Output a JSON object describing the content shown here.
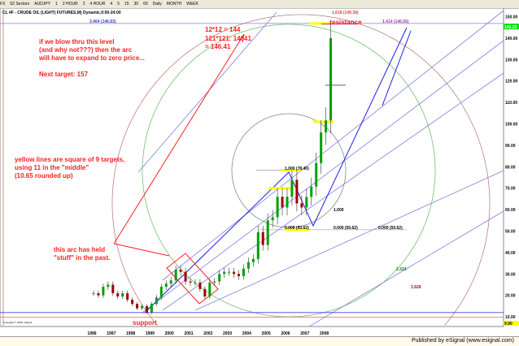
{
  "toolbar": {
    "items": [
      "FX",
      "52 Sectors",
      "AUDJPY",
      "1",
      "2 HOUR",
      "2",
      "4 HOUR",
      "4",
      "5",
      "15",
      "30",
      "60",
      "Daily",
      "MONTH",
      "WEEK"
    ]
  },
  "footer": {
    "published": "Published by eSignal (www.esignal.com)"
  },
  "chart_data": {
    "type": "candlestick",
    "title": "CL #F - CRUDE OIL (LIGHT) FUTURES,M) Dynamic,0:00-24:00",
    "copyright": "Copyright © 2008, eSignal",
    "x_tick_labels": [
      "1996",
      "1997",
      "1998",
      "1999",
      "2000",
      "2001",
      "2002",
      "2003",
      "2004",
      "2005",
      "2006",
      "2007",
      "2008"
    ],
    "y_tick_labels": [
      "150.00",
      "140.00",
      "130.00",
      "120.00",
      "110.00",
      "100.00",
      "90.00",
      "80.00",
      "70.00",
      "60.00",
      "50.00",
      "40.00",
      "30.00",
      "20.00",
      "10.00"
    ],
    "ylim": [
      0,
      155
    ],
    "last_price": "145.23",
    "low_marker": "9.90",
    "period": "quarterly (approx.)",
    "start": "1996-Q1",
    "closes": [
      21,
      20,
      24,
      25,
      21,
      19.5,
      21,
      18,
      16,
      14,
      15,
      12,
      16,
      19,
      24,
      25.5,
      27,
      32,
      31,
      26.5,
      26,
      26,
      23,
      19.5,
      26,
      26.5,
      30,
      31,
      31,
      30,
      29,
      32.5,
      35.5,
      37,
      49.5,
      43.5,
      55,
      56.5,
      66,
      61,
      66,
      73.9,
      62.9,
      61,
      65.9,
      70.7,
      81.7,
      96,
      101.6,
      140
    ],
    "fib_labels": {
      "top_left": "3.464 (146.83)",
      "top_mid": "1.618 (149.38)",
      "top_right": "1.414 (146.56)",
      "mid": "1.000 (78.40)",
      "base1": "0.000 (50.62)",
      "base2": "0.000 (50.62)",
      "base3": "0.000 (50.62)",
      "circle": "1.000",
      "green_arc": "2.324",
      "brown_arc": "2.828"
    },
    "annotations": {
      "formula1": "12*12 = 144",
      "formula2": "121*121: 14641",
      "formula3": "= 146.41",
      "resistance": "resistance",
      "support": "support",
      "blow1": "if we blow thru this level",
      "blow2": "(and why not???) then the arc",
      "blow3": "will have to expand to zero price...",
      "next": "Next target: 157",
      "yellow1": "yellow lines are square of 9 targets,",
      "yellow2": "using 11 in the \"middle\"",
      "yellow3": "(10.65 rounded up)",
      "arc1": "this arc has held",
      "arc2": "\"stuff\" in the past."
    },
    "colors": {
      "up": "#00a000",
      "down": "#a00000",
      "annotation": "#ff2020",
      "trend": "#8080e0",
      "zigzag": "#2020e0",
      "green_arc": "#70c070",
      "brown_arc": "#c08080",
      "yellow": "#ffff00"
    }
  }
}
